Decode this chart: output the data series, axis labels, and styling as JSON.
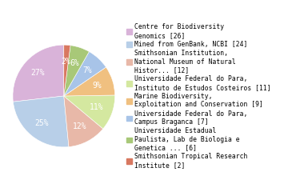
{
  "labels": [
    "Centre for Biodiversity\nGenomics [26]",
    "Mined from GenBank, NCBI [24]",
    "Smithsonian Institution,\nNational Museum of Natural\nHistor... [12]",
    "Universidade Federal do Para,\nInstituto de Estudos Costeiros [11]",
    "Marine Biodiversity,\nExploitation and Conservation [9]",
    "Universidade Federal do Para,\nCampus Braganca [7]",
    "Universidade Estadual\nPaulista, Lab de Biologia e\nGenetica ... [6]",
    "Smithsonian Tropical Research\nInstitute [2]"
  ],
  "values": [
    26,
    24,
    12,
    11,
    9,
    7,
    6,
    2
  ],
  "colors": [
    "#d9b3d9",
    "#b8cfe8",
    "#e8b8a8",
    "#d4e8a0",
    "#f0c080",
    "#a8c4e8",
    "#a8c878",
    "#d87860"
  ],
  "startangle": 90,
  "legend_fontsize": 5.8,
  "pct_fontsize": 7.0,
  "pct_color": "white"
}
